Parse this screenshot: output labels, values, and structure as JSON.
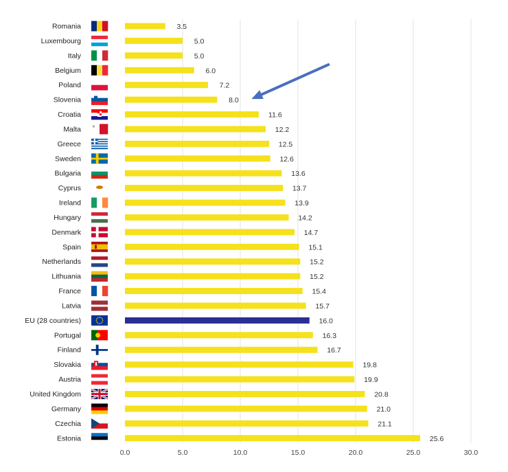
{
  "chart_data": {
    "type": "bar",
    "orientation": "horizontal",
    "categories": [
      "Romania",
      "Luxembourg",
      "Italy",
      "Belgium",
      "Poland",
      "Slovenia",
      "Croatia",
      "Malta",
      "Greece",
      "Sweden",
      "Bulgaria",
      "Cyprus",
      "Ireland",
      "Hungary",
      "Denmark",
      "Spain",
      "Netherlands",
      "Lithuania",
      "France",
      "Latvia",
      "EU (28 countries)",
      "Portugal",
      "Finland",
      "Slovakia",
      "Austria",
      "United Kingdom",
      "Germany",
      "Czechia",
      "Estonia"
    ],
    "values": [
      3.5,
      5.0,
      5.0,
      6.0,
      7.2,
      8.0,
      11.6,
      12.2,
      12.5,
      12.6,
      13.6,
      13.7,
      13.9,
      14.2,
      14.7,
      15.1,
      15.2,
      15.2,
      15.4,
      15.7,
      16.0,
      16.3,
      16.7,
      19.8,
      19.9,
      20.8,
      21.0,
      21.1,
      25.6
    ],
    "value_labels": [
      "3.5",
      "5.0",
      "5.0",
      "6.0",
      "7.2",
      "8.0",
      "11.6",
      "12.2",
      "12.5",
      "12.6",
      "13.6",
      "13.7",
      "13.9",
      "14.2",
      "14.7",
      "15.1",
      "15.2",
      "15.2",
      "15.4",
      "15.7",
      "16.0",
      "16.3",
      "16.7",
      "19.8",
      "19.9",
      "20.8",
      "21.0",
      "21.1",
      "25.6"
    ],
    "flags": [
      "romania-flag",
      "luxembourg-flag",
      "italy-flag",
      "belgium-flag",
      "poland-flag",
      "slovenia-flag",
      "croatia-flag",
      "malta-flag",
      "greece-flag",
      "sweden-flag",
      "bulgaria-flag",
      "cyprus-flag",
      "ireland-flag",
      "hungary-flag",
      "denmark-flag",
      "spain-flag",
      "netherlands-flag",
      "lithuania-flag",
      "france-flag",
      "latvia-flag",
      "eu-flag",
      "portugal-flag",
      "finland-flag",
      "slovakia-flag",
      "austria-flag",
      "united-kingdom-flag",
      "germany-flag",
      "czechia-flag",
      "estonia-flag"
    ],
    "highlight_category": "EU (28 countries)",
    "annotation": {
      "type": "arrow",
      "points_to": "Slovenia",
      "color": "#4a6fbf"
    },
    "x_ticks": [
      "0.0",
      "5.0",
      "10.0",
      "15.0",
      "20.0",
      "25.0",
      "30.0"
    ],
    "xlim": [
      0,
      30
    ],
    "title": "",
    "xlabel": "",
    "ylabel": "",
    "grid": "vertical",
    "legend": "none",
    "colors": {
      "bar": "#f5e11c",
      "highlight": "#2b2e94",
      "grid": "#e3e3e3",
      "arrow": "#4a6fbf"
    }
  }
}
